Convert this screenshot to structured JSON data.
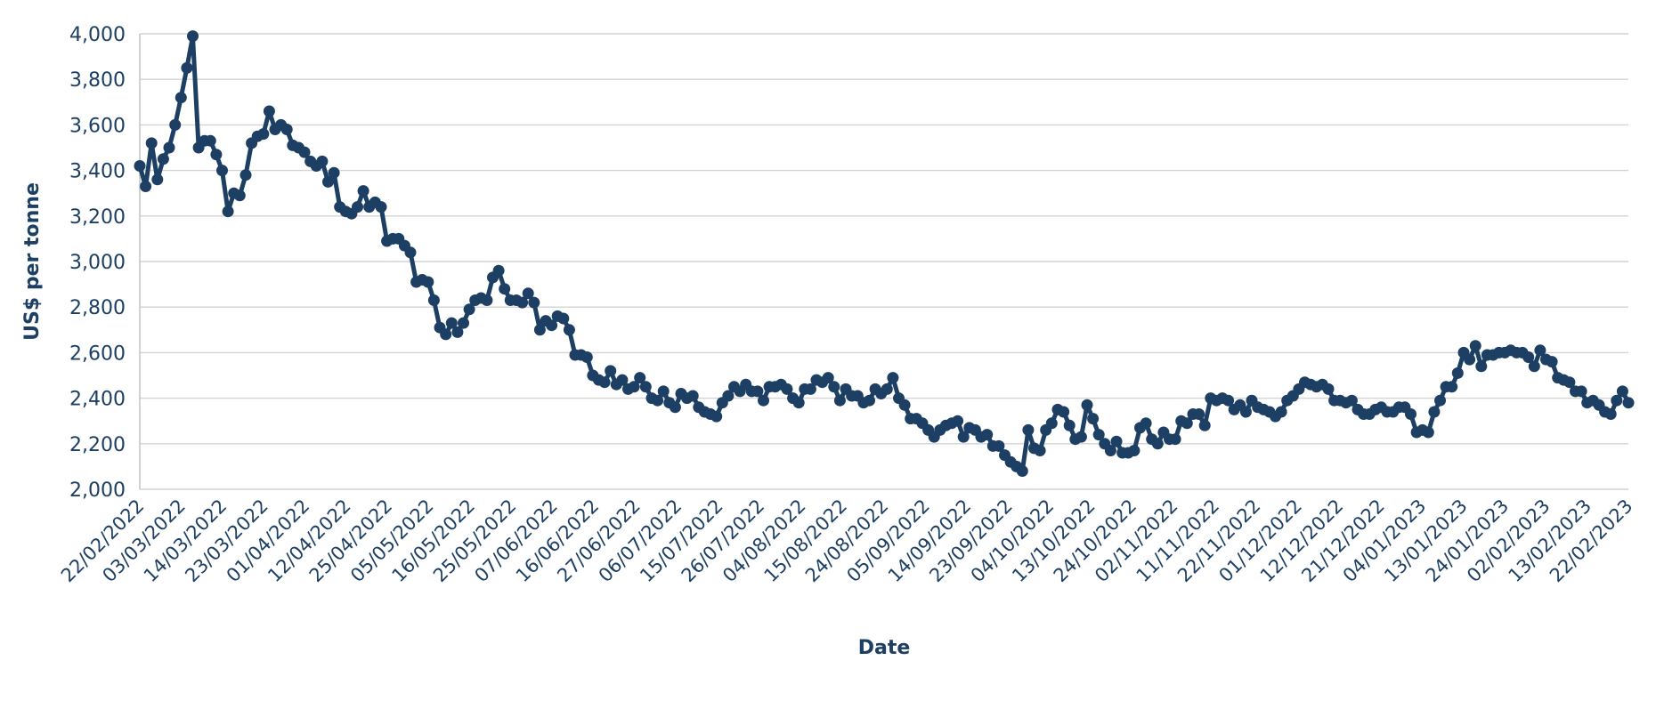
{
  "chart_data": {
    "type": "line",
    "title": "",
    "xlabel": "Date",
    "ylabel": "US$ per tonne",
    "ylim": [
      2000,
      4000
    ],
    "yticks": [
      "2,000",
      "2,200",
      "2,400",
      "2,600",
      "2,800",
      "3,000",
      "3,200",
      "3,400",
      "3,600",
      "3,800",
      "4,000"
    ],
    "xticks": [
      "22/02/2022",
      "03/03/2022",
      "14/03/2022",
      "23/03/2022",
      "01/04/2022",
      "12/04/2022",
      "25/04/2022",
      "05/05/2022",
      "16/05/2022",
      "25/05/2022",
      "07/06/2022",
      "16/06/2022",
      "27/06/2022",
      "06/07/2022",
      "15/07/2022",
      "26/07/2022",
      "04/08/2022",
      "15/08/2022",
      "24/08/2022",
      "05/09/2022",
      "14/09/2022",
      "23/09/2022",
      "04/10/2022",
      "13/10/2022",
      "24/10/2022",
      "02/11/2022",
      "11/11/2022",
      "22/11/2022",
      "01/12/2022",
      "12/12/2022",
      "21/12/2022",
      "04/01/2023",
      "13/01/2023",
      "24/01/2023",
      "02/02/2023",
      "13/02/2023",
      "22/02/2023"
    ],
    "grid": true,
    "line_color": "#1c3f63",
    "values": [
      3420,
      3330,
      3520,
      3360,
      3450,
      3500,
      3600,
      3720,
      3850,
      3990,
      3500,
      3530,
      3530,
      3470,
      3400,
      3220,
      3300,
      3290,
      3380,
      3520,
      3550,
      3560,
      3660,
      3580,
      3600,
      3580,
      3510,
      3500,
      3480,
      3440,
      3420,
      3440,
      3350,
      3390,
      3240,
      3220,
      3210,
      3240,
      3310,
      3240,
      3260,
      3240,
      3090,
      3100,
      3100,
      3070,
      3040,
      2910,
      2920,
      2910,
      2830,
      2710,
      2680,
      2730,
      2690,
      2730,
      2790,
      2830,
      2840,
      2830,
      2930,
      2960,
      2880,
      2830,
      2830,
      2820,
      2860,
      2820,
      2700,
      2740,
      2720,
      2760,
      2750,
      2700,
      2590,
      2590,
      2580,
      2500,
      2480,
      2470,
      2520,
      2460,
      2480,
      2440,
      2450,
      2490,
      2450,
      2400,
      2390,
      2430,
      2380,
      2360,
      2420,
      2400,
      2410,
      2360,
      2340,
      2330,
      2320,
      2380,
      2410,
      2450,
      2430,
      2460,
      2430,
      2430,
      2390,
      2450,
      2450,
      2460,
      2440,
      2400,
      2380,
      2440,
      2440,
      2480,
      2470,
      2490,
      2450,
      2390,
      2440,
      2410,
      2410,
      2380,
      2390,
      2440,
      2420,
      2440,
      2490,
      2400,
      2370,
      2310,
      2310,
      2290,
      2260,
      2230,
      2260,
      2280,
      2290,
      2300,
      2230,
      2270,
      2260,
      2230,
      2240,
      2190,
      2190,
      2150,
      2120,
      2100,
      2080,
      2260,
      2180,
      2170,
      2260,
      2290,
      2350,
      2340,
      2280,
      2220,
      2230,
      2370,
      2310,
      2240,
      2200,
      2170,
      2210,
      2160,
      2160,
      2170,
      2270,
      2290,
      2220,
      2200,
      2250,
      2220,
      2220,
      2300,
      2290,
      2330,
      2330,
      2280,
      2400,
      2390,
      2400,
      2390,
      2350,
      2370,
      2340,
      2390,
      2360,
      2350,
      2340,
      2320,
      2340,
      2390,
      2410,
      2440,
      2470,
      2460,
      2450,
      2460,
      2440,
      2390,
      2390,
      2380,
      2390,
      2350,
      2330,
      2330,
      2350,
      2360,
      2340,
      2340,
      2360,
      2360,
      2330,
      2250,
      2260,
      2250,
      2340,
      2390,
      2450,
      2450,
      2510,
      2600,
      2570,
      2630,
      2540,
      2590,
      2590,
      2600,
      2600,
      2610,
      2600,
      2600,
      2580,
      2540,
      2610,
      2570,
      2560,
      2490,
      2480,
      2470,
      2430,
      2430,
      2380,
      2390,
      2370,
      2340,
      2330,
      2390,
      2430,
      2380
    ]
  }
}
